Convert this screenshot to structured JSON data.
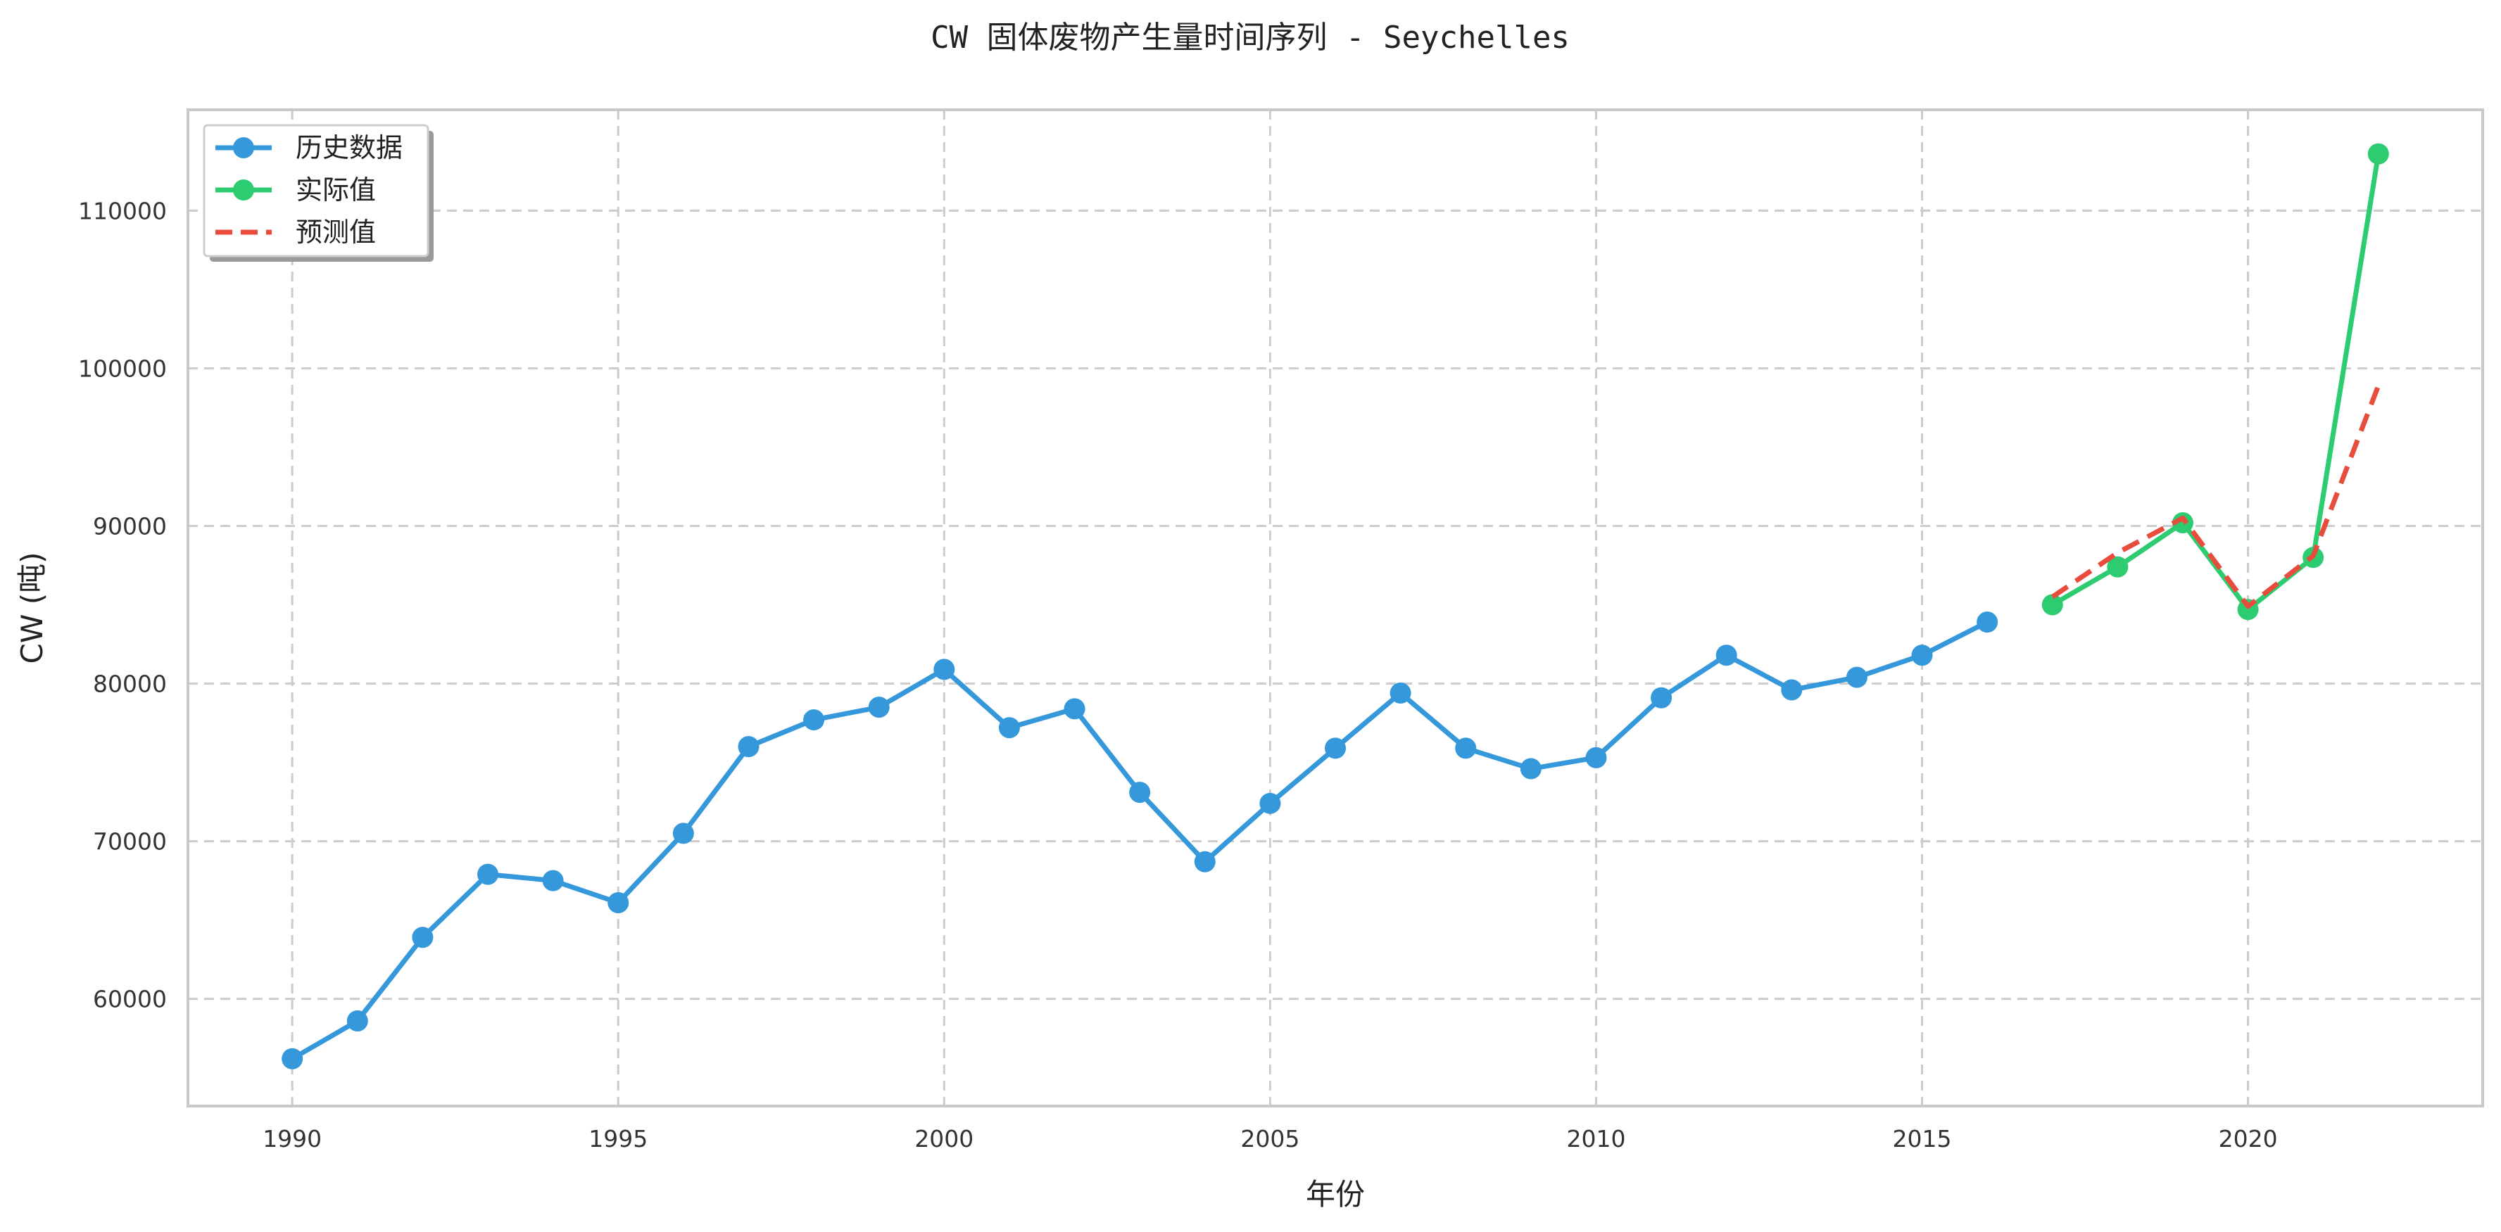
{
  "chart_data": {
    "type": "line",
    "title": "CW 固体废物产生量时间序列 - Seychelles",
    "xlabel": "年份",
    "ylabel": "CW (吨)",
    "xlim": [
      1988.4,
      2023.6
    ],
    "ylim": [
      53200,
      116400
    ],
    "x_ticks": [
      1990,
      1995,
      2000,
      2005,
      2010,
      2015,
      2020
    ],
    "y_ticks": [
      60000,
      70000,
      80000,
      90000,
      100000,
      110000
    ],
    "grid": true,
    "legend_position": "top-left",
    "series": [
      {
        "name": "历史数据",
        "color": "#3498db",
        "style": "solid",
        "marker": true,
        "x": [
          1990,
          1991,
          1992,
          1993,
          1994,
          1995,
          1996,
          1997,
          1998,
          1999,
          2000,
          2001,
          2002,
          2003,
          2004,
          2005,
          2006,
          2007,
          2008,
          2009,
          2010,
          2011,
          2012,
          2013,
          2014,
          2015,
          2016
        ],
        "y": [
          56200,
          58600,
          63900,
          67900,
          67500,
          66100,
          70500,
          76000,
          77700,
          78500,
          80900,
          77200,
          78400,
          73100,
          68700,
          72400,
          75900,
          79400,
          75900,
          74600,
          75300,
          79100,
          81800,
          79600,
          80400,
          81800,
          83900
        ]
      },
      {
        "name": "实际值",
        "color": "#2ecc71",
        "style": "solid",
        "marker": true,
        "x": [
          2017,
          2018,
          2019,
          2020,
          2021,
          2022
        ],
        "y": [
          85000,
          87400,
          90200,
          84700,
          88000,
          113600
        ]
      },
      {
        "name": "预测值",
        "color": "#e74c3c",
        "style": "dashed",
        "marker": false,
        "x": [
          2017,
          2018,
          2019,
          2020,
          2021,
          2022
        ],
        "y": [
          85500,
          88300,
          90500,
          84900,
          88100,
          98900
        ]
      }
    ]
  }
}
